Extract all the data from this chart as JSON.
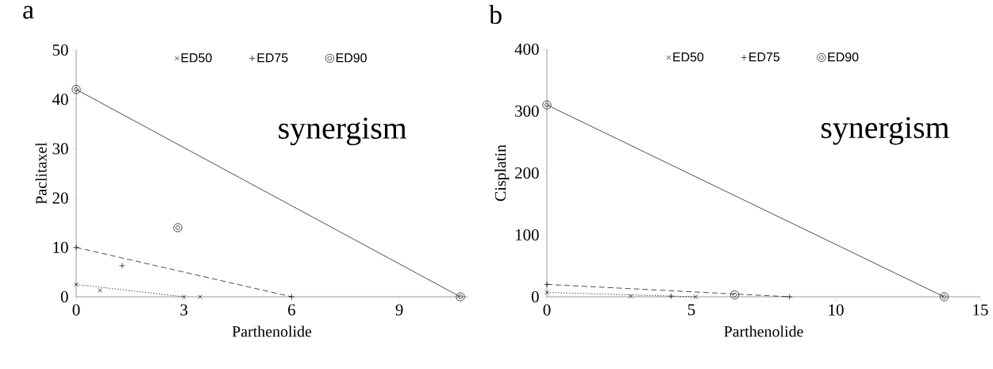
{
  "chart_data": [
    {
      "type": "line",
      "title": "a",
      "xlabel": "Parthenolide",
      "ylabel": "Paclitaxel",
      "annotations": [
        "synergism"
      ],
      "xlim": [
        0,
        10.9
      ],
      "ylim": [
        0,
        50
      ],
      "xticks": [
        0,
        3,
        6,
        9
      ],
      "yticks": [
        0,
        10,
        20,
        30,
        40,
        50
      ],
      "legend": "top",
      "series": [
        {
          "name": "ED50",
          "marker": "cross",
          "line_style": "dotted",
          "color": "#000000",
          "x": [
            0,
            3
          ],
          "values": [
            2.5,
            0
          ]
        },
        {
          "name": "ED75",
          "marker": "plus",
          "line_style": "dashed",
          "color": "#000000",
          "x": [
            0,
            6
          ],
          "values": [
            10,
            0
          ]
        },
        {
          "name": "ED90",
          "marker": "circle",
          "line_style": "solid",
          "color": "#000000",
          "x": [
            0,
            10.7
          ],
          "values": [
            42,
            0
          ]
        },
        {
          "type": "scatter",
          "marker": "cross",
          "color": "#000000",
          "x": [
            0.66,
            3.45
          ],
          "values": [
            1.3,
            0
          ]
        },
        {
          "type": "scatter",
          "marker": "plus",
          "color": "#000000",
          "x": [
            1.28
          ],
          "values": [
            6.3
          ]
        },
        {
          "type": "scatter",
          "marker": "circle",
          "color": "#000000",
          "x": [
            2.83
          ],
          "values": [
            14
          ]
        }
      ]
    },
    {
      "type": "line",
      "title": "b",
      "xlabel": "Parthenolide",
      "ylabel": "Cisplatin",
      "annotations": [
        "synergism"
      ],
      "xlim": [
        0,
        15
      ],
      "ylim": [
        0,
        400
      ],
      "xticks": [
        0,
        5,
        10,
        15
      ],
      "yticks": [
        0,
        100,
        200,
        300,
        400
      ],
      "legend": "top",
      "series": [
        {
          "name": "ED50",
          "marker": "cross",
          "line_style": "dotted",
          "color": "#000000",
          "x": [
            0,
            5.15
          ],
          "values": [
            7,
            0
          ]
        },
        {
          "name": "ED75",
          "marker": "plus",
          "line_style": "dashed",
          "color": "#000000",
          "x": [
            0,
            8.4
          ],
          "values": [
            20,
            0
          ]
        },
        {
          "name": "ED90",
          "marker": "circle",
          "line_style": "solid",
          "color": "#000000",
          "x": [
            0,
            13.75
          ],
          "values": [
            310,
            0
          ]
        },
        {
          "type": "scatter",
          "marker": "cross",
          "color": "#000000",
          "x": [
            2.9
          ],
          "values": [
            1
          ]
        },
        {
          "type": "scatter",
          "marker": "plus",
          "color": "#000000",
          "x": [
            4.3
          ],
          "values": [
            1
          ]
        },
        {
          "type": "scatter",
          "marker": "circle",
          "color": "#000000",
          "x": [
            6.5
          ],
          "values": [
            3
          ]
        }
      ]
    }
  ]
}
